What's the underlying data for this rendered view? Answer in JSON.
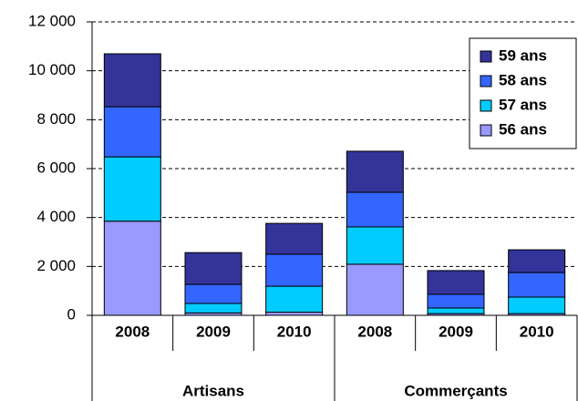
{
  "chart_data": {
    "type": "stacked-bar",
    "groups": [
      {
        "label": "Artisans",
        "categories": [
          "2008",
          "2009",
          "2010"
        ]
      },
      {
        "label": "Commerçants",
        "categories": [
          "2008",
          "2009",
          "2010"
        ]
      }
    ],
    "series": [
      {
        "name": "56 ans",
        "color": "#9999ff",
        "values": [
          3850,
          100,
          130,
          2090,
          70,
          70
        ]
      },
      {
        "name": "57 ans",
        "color": "#00ccff",
        "values": [
          2630,
          385,
          1060,
          1525,
          230,
          675
        ]
      },
      {
        "name": "58 ans",
        "color": "#3366ff",
        "values": [
          2050,
          780,
          1310,
          1415,
          560,
          1005
        ]
      },
      {
        "name": "59 ans",
        "color": "#333399",
        "values": [
          2165,
          1300,
          1260,
          1680,
          970,
          930
        ]
      }
    ],
    "ylim": [
      0,
      12000
    ],
    "yticks": [
      0,
      {
        "value": 2000,
        "label": "2 000"
      },
      {
        "value": 4000,
        "label": "4 000"
      },
      {
        "value": 6000,
        "label": "6 000"
      },
      {
        "value": 8000,
        "label": "8 000"
      },
      {
        "value": 10000,
        "label": "10 000"
      },
      {
        "value": 12000,
        "label": "12 000"
      }
    ],
    "grid": true,
    "legend": "top-right"
  }
}
